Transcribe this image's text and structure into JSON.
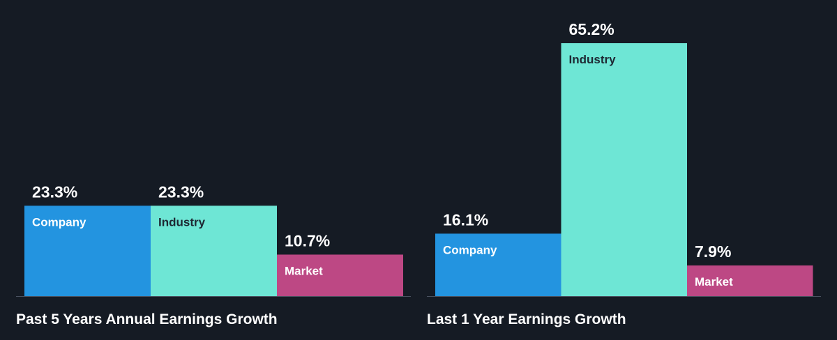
{
  "colors": {
    "background": "#151b24",
    "axis": "#4a5260",
    "value_text": "#ffffff",
    "title_text": "#ffffff"
  },
  "chart_data": [
    {
      "type": "bar",
      "title": "Past 5 Years Annual Earnings Growth",
      "categories": [
        "Company",
        "Industry",
        "Market"
      ],
      "values": [
        23.3,
        23.3,
        10.7
      ],
      "value_labels": [
        "23.3%",
        "23.3%",
        "10.7%"
      ],
      "colors": [
        "#2394e0",
        "#6ee6d5",
        "#bd4884"
      ],
      "label_colors": [
        "#ffffff",
        "#1e2833",
        "#ffffff"
      ],
      "ylim": [
        0,
        65.2
      ],
      "grid": false,
      "legend": "none"
    },
    {
      "type": "bar",
      "title": "Last 1 Year Earnings Growth",
      "categories": [
        "Company",
        "Industry",
        "Market"
      ],
      "values": [
        16.1,
        65.2,
        7.9
      ],
      "value_labels": [
        "16.1%",
        "65.2%",
        "7.9%"
      ],
      "colors": [
        "#2394e0",
        "#6ee6d5",
        "#bd4884"
      ],
      "label_colors": [
        "#ffffff",
        "#1e2833",
        "#ffffff"
      ],
      "ylim": [
        0,
        65.2
      ],
      "grid": false,
      "legend": "none"
    }
  ]
}
